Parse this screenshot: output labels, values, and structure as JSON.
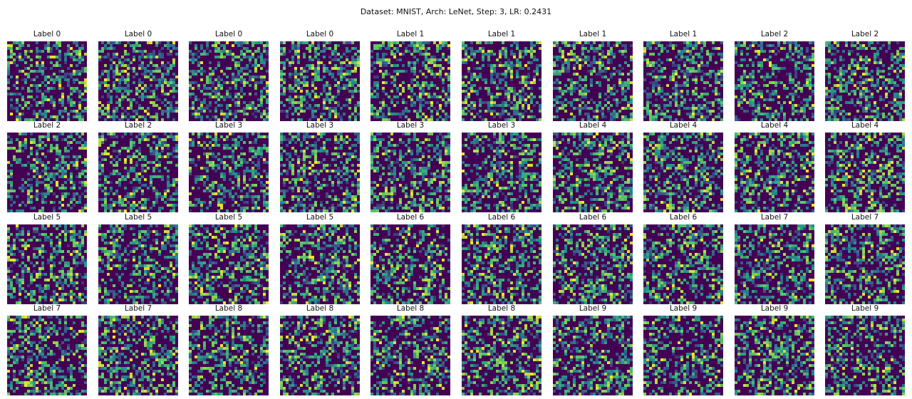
{
  "figure": {
    "title": "Dataset: MNIST, Arch: LeNet, Step: 3, LR: 0.2431",
    "colormap": "viridis",
    "image_resolution": "28x28",
    "panels": [
      {
        "label": "Label 0"
      },
      {
        "label": "Label 0"
      },
      {
        "label": "Label 0"
      },
      {
        "label": "Label 0"
      },
      {
        "label": "Label 1"
      },
      {
        "label": "Label 1"
      },
      {
        "label": "Label 1"
      },
      {
        "label": "Label 1"
      },
      {
        "label": "Label 2"
      },
      {
        "label": "Label 2"
      },
      {
        "label": "Label 2"
      },
      {
        "label": "Label 2"
      },
      {
        "label": "Label 3"
      },
      {
        "label": "Label 3"
      },
      {
        "label": "Label 3"
      },
      {
        "label": "Label 3"
      },
      {
        "label": "Label 4"
      },
      {
        "label": "Label 4"
      },
      {
        "label": "Label 4"
      },
      {
        "label": "Label 4"
      },
      {
        "label": "Label 5"
      },
      {
        "label": "Label 5"
      },
      {
        "label": "Label 5"
      },
      {
        "label": "Label 5"
      },
      {
        "label": "Label 6"
      },
      {
        "label": "Label 6"
      },
      {
        "label": "Label 6"
      },
      {
        "label": "Label 6"
      },
      {
        "label": "Label 7"
      },
      {
        "label": "Label 7"
      },
      {
        "label": "Label 7"
      },
      {
        "label": "Label 7"
      },
      {
        "label": "Label 8"
      },
      {
        "label": "Label 8"
      },
      {
        "label": "Label 8"
      },
      {
        "label": "Label 8"
      },
      {
        "label": "Label 9"
      },
      {
        "label": "Label 9"
      },
      {
        "label": "Label 9"
      },
      {
        "label": "Label 9"
      }
    ]
  }
}
